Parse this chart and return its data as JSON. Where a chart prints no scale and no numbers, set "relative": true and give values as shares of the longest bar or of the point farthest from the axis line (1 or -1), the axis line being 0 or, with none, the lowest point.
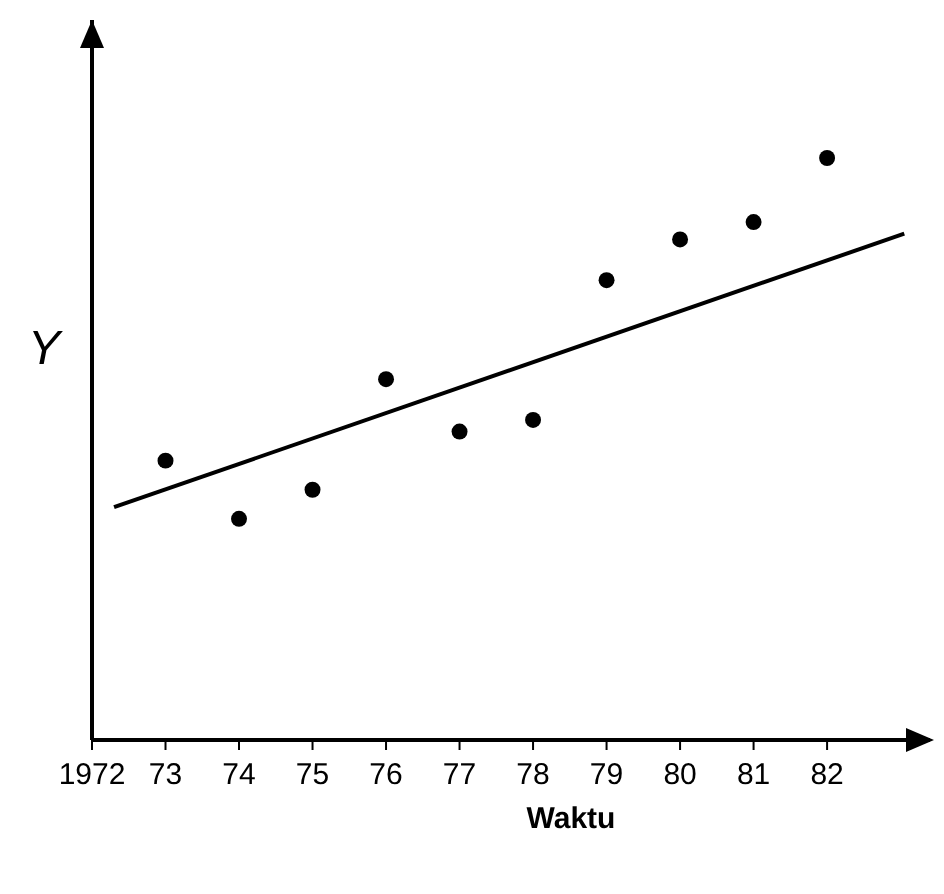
{
  "chart_data": {
    "type": "scatter",
    "xlabel": "Waktu",
    "ylabel": "Y",
    "relative": true,
    "marker": "circle",
    "xlim": [
      1972,
      1983.4
    ],
    "xticks": [
      {
        "value": 1972,
        "label": "1972"
      },
      {
        "value": 1973,
        "label": "73"
      },
      {
        "value": 1974,
        "label": "74"
      },
      {
        "value": 1975,
        "label": "75"
      },
      {
        "value": 1976,
        "label": "76"
      },
      {
        "value": 1977,
        "label": "77"
      },
      {
        "value": 1978,
        "label": "78"
      },
      {
        "value": 1979,
        "label": "79"
      },
      {
        "value": 1980,
        "label": "80"
      },
      {
        "value": 1981,
        "label": "81"
      },
      {
        "value": 1982,
        "label": "82"
      }
    ],
    "series": [
      {
        "color": "#000000",
        "x": [
          1973,
          1974,
          1975,
          1976,
          1977,
          1978,
          1979,
          1980,
          1981,
          1982
        ],
        "values": [
          0.48,
          0.38,
          0.43,
          0.62,
          0.53,
          0.55,
          0.79,
          0.86,
          0.89,
          1
        ]
      },
      {
        "type": "line",
        "marker": "none",
        "color": "#000000",
        "x": [
          1972.3,
          1983.05
        ],
        "values": [
          0.4,
          0.87
        ]
      }
    ]
  }
}
